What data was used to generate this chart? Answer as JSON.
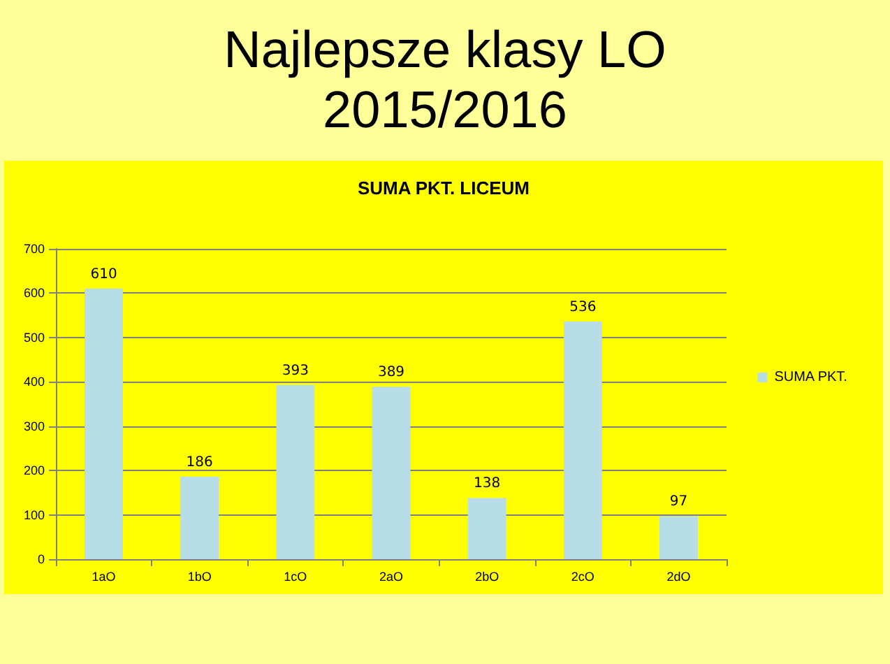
{
  "chart_data": {
    "type": "bar",
    "title": "Najlepsze klasy LO\n2015/2016",
    "subtitle": "SUMA PKT. LICEUM",
    "categories": [
      "1aO",
      "1bO",
      "1cO",
      "2aO",
      "2bO",
      "2cO",
      "2dO"
    ],
    "series": [
      {
        "name": "SUMA PKT.",
        "color": "#b7dde8",
        "values": [
          610,
          186,
          393,
          389,
          138,
          536,
          97
        ]
      }
    ],
    "ylim": [
      0,
      700
    ],
    "yticks": [
      0,
      100,
      200,
      300,
      400,
      500,
      600,
      700
    ],
    "grid": "y",
    "legend": "right",
    "data_labels": true
  }
}
